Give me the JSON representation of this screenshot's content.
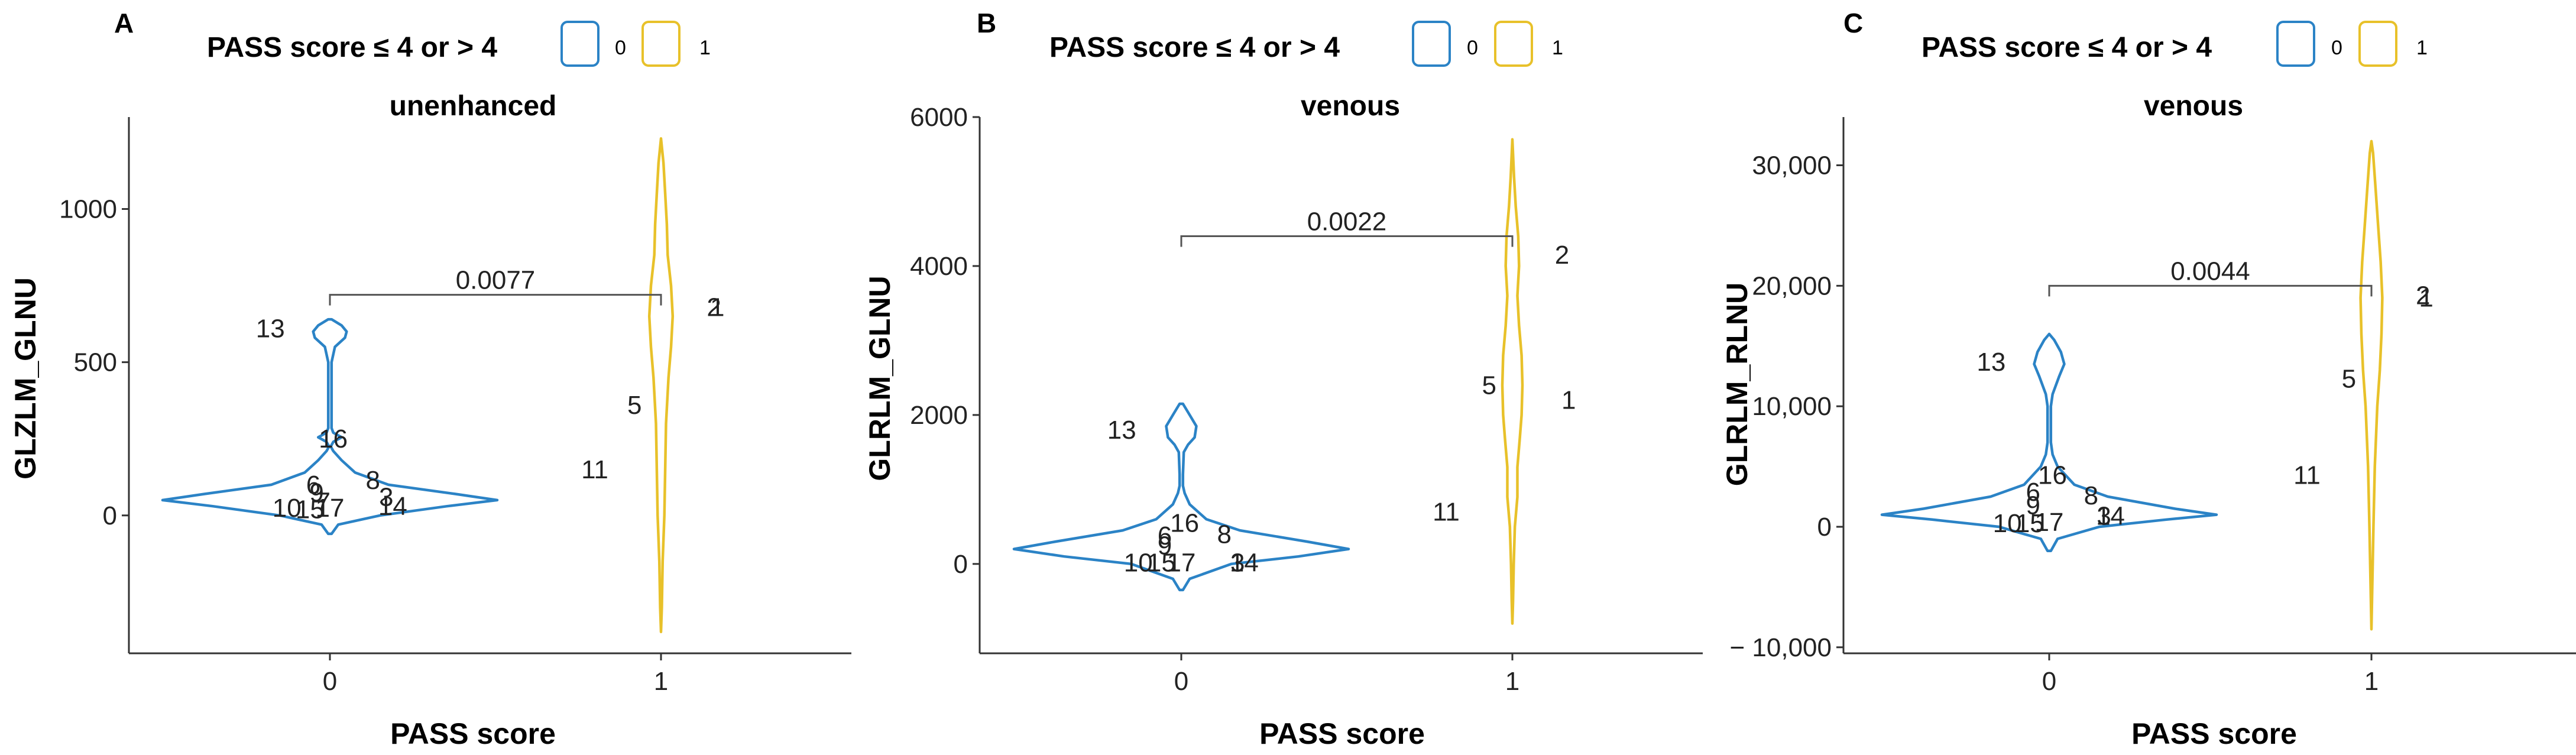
{
  "colors": {
    "group0": "#2b83c6",
    "group1": "#e8c12a",
    "axis": "#333333",
    "bracket": "#555555"
  },
  "legend": {
    "title": "PASS score ≤ 4 or > 4",
    "items": [
      "0",
      "1"
    ]
  },
  "chart_data": [
    {
      "type": "violin",
      "panel": "A",
      "title": "unenhanced",
      "xlabel": "PASS score",
      "ylabel": "GLZLM_GLNU",
      "categories": [
        "0",
        "1"
      ],
      "ylim": [
        -450,
        1300
      ],
      "yticks": [
        0,
        500,
        1000
      ],
      "ytick_labels": [
        "0",
        "500",
        "1000"
      ],
      "p_value": "0.0077",
      "bracket_y": 720,
      "series": [
        {
          "name": "0",
          "profile": [
            [
              -60,
              0.01
            ],
            [
              -30,
              0.05
            ],
            [
              0,
              0.3
            ],
            [
              30,
              0.7
            ],
            [
              50,
              1.0
            ],
            [
              70,
              0.75
            ],
            [
              100,
              0.35
            ],
            [
              140,
              0.15
            ],
            [
              180,
              0.07
            ],
            [
              210,
              0.02
            ],
            [
              225,
              0.005
            ],
            [
              240,
              0.02
            ],
            [
              255,
              0.07
            ],
            [
              270,
              0.02
            ],
            [
              285,
              0.01
            ],
            [
              320,
              0.01
            ],
            [
              400,
              0.01
            ],
            [
              500,
              0.01
            ],
            [
              550,
              0.03
            ],
            [
              580,
              0.09
            ],
            [
              600,
              0.1
            ],
            [
              620,
              0.07
            ],
            [
              640,
              0.01
            ]
          ],
          "points": [
            {
              "label": "13",
              "y": 610,
              "side": -0.18
            },
            {
              "label": "16",
              "y": 250,
              "side": 0.01
            },
            {
              "label": "8",
              "y": 115,
              "side": 0.13
            },
            {
              "label": "6",
              "y": 100,
              "side": -0.05
            },
            {
              "label": "9",
              "y": 75,
              "side": -0.04
            },
            {
              "label": "3",
              "y": 60,
              "side": 0.17
            },
            {
              "label": "7",
              "y": 45,
              "side": -0.02
            },
            {
              "label": "14",
              "y": 30,
              "side": 0.19
            },
            {
              "label": "10",
              "y": 25,
              "side": -0.13
            },
            {
              "label": "15",
              "y": 20,
              "side": -0.06
            },
            {
              "label": "17",
              "y": 25,
              "side": 0.0
            }
          ]
        },
        {
          "name": "1",
          "profile": [
            [
              -380,
              0.0
            ],
            [
              -300,
              0.005
            ],
            [
              -150,
              0.01
            ],
            [
              0,
              0.02
            ],
            [
              150,
              0.025
            ],
            [
              300,
              0.03
            ],
            [
              450,
              0.045
            ],
            [
              550,
              0.06
            ],
            [
              650,
              0.07
            ],
            [
              750,
              0.06
            ],
            [
              850,
              0.04
            ],
            [
              950,
              0.035
            ],
            [
              1050,
              0.025
            ],
            [
              1150,
              0.015
            ],
            [
              1230,
              0.0
            ]
          ],
          "points": [
            {
              "label": "2",
              "y": 680,
              "side": 0.16
            },
            {
              "label": "1",
              "y": 680,
              "side": 0.17
            },
            {
              "label": "5",
              "y": 360,
              "side": -0.08
            },
            {
              "label": "11",
              "y": 150,
              "side": -0.2
            }
          ]
        }
      ]
    },
    {
      "type": "violin",
      "panel": "B",
      "title": "venous",
      "xlabel": "PASS score",
      "ylabel": "GLRLM_GLNU",
      "categories": [
        "0",
        "1"
      ],
      "ylim": [
        -1200,
        6000
      ],
      "yticks": [
        0,
        2000,
        4000,
        6000
      ],
      "ytick_labels": [
        "0",
        "2000",
        "4000",
        "6000"
      ],
      "p_value": "0.0022",
      "bracket_y": 4400,
      "series": [
        {
          "name": "0",
          "profile": [
            [
              -350,
              0.01
            ],
            [
              -200,
              0.05
            ],
            [
              0,
              0.3
            ],
            [
              100,
              0.7
            ],
            [
              200,
              1.0
            ],
            [
              300,
              0.75
            ],
            [
              450,
              0.35
            ],
            [
              600,
              0.15
            ],
            [
              800,
              0.05
            ],
            [
              950,
              0.02
            ],
            [
              1050,
              0.01
            ],
            [
              1200,
              0.01
            ],
            [
              1500,
              0.015
            ],
            [
              1600,
              0.04
            ],
            [
              1700,
              0.08
            ],
            [
              1850,
              0.09
            ],
            [
              2000,
              0.05
            ],
            [
              2150,
              0.01
            ]
          ],
          "points": [
            {
              "label": "13",
              "y": 1800,
              "side": -0.18
            },
            {
              "label": "16",
              "y": 550,
              "side": 0.01
            },
            {
              "label": "8",
              "y": 400,
              "side": 0.13
            },
            {
              "label": "6",
              "y": 380,
              "side": -0.05
            },
            {
              "label": "9",
              "y": 250,
              "side": -0.05
            },
            {
              "label": "3",
              "y": 20,
              "side": 0.17
            },
            {
              "label": "14",
              "y": 20,
              "side": 0.19
            },
            {
              "label": "10",
              "y": 20,
              "side": -0.13
            },
            {
              "label": "15",
              "y": 20,
              "side": -0.06
            },
            {
              "label": "17",
              "y": 20,
              "side": 0.0
            }
          ]
        },
        {
          "name": "1",
          "profile": [
            [
              -800,
              0.0
            ],
            [
              -500,
              0.004
            ],
            [
              0,
              0.008
            ],
            [
              500,
              0.015
            ],
            [
              900,
              0.03
            ],
            [
              1300,
              0.03
            ],
            [
              1700,
              0.045
            ],
            [
              2000,
              0.055
            ],
            [
              2400,
              0.06
            ],
            [
              2800,
              0.055
            ],
            [
              3200,
              0.04
            ],
            [
              3600,
              0.03
            ],
            [
              4000,
              0.04
            ],
            [
              4400,
              0.035
            ],
            [
              4800,
              0.02
            ],
            [
              5200,
              0.01
            ],
            [
              5700,
              0.0
            ]
          ],
          "points": [
            {
              "label": "2",
              "y": 4150,
              "side": 0.15
            },
            {
              "label": "5",
              "y": 2400,
              "side": -0.07
            },
            {
              "label": "1",
              "y": 2200,
              "side": 0.17
            },
            {
              "label": "11",
              "y": 700,
              "side": -0.2
            }
          ]
        }
      ]
    },
    {
      "type": "violin",
      "panel": "C",
      "title": "venous",
      "xlabel": "PASS score",
      "ylabel": "GLRLM_RLNU",
      "categories": [
        "0",
        "1"
      ],
      "ylim": [
        -10500,
        34000
      ],
      "yticks": [
        -10000,
        0,
        10000,
        20000,
        30000
      ],
      "ytick_labels": [
        "− 10,000",
        "0",
        "10,000",
        "20,000",
        "30,000"
      ],
      "p_value": "0.0044",
      "bracket_y": 20000,
      "series": [
        {
          "name": "0",
          "profile": [
            [
              -2000,
              0.01
            ],
            [
              -1000,
              0.05
            ],
            [
              0,
              0.3
            ],
            [
              600,
              0.7
            ],
            [
              1000,
              1.0
            ],
            [
              1500,
              0.75
            ],
            [
              2500,
              0.35
            ],
            [
              3500,
              0.15
            ],
            [
              5000,
              0.05
            ],
            [
              6000,
              0.02
            ],
            [
              7000,
              0.01
            ],
            [
              8000,
              0.01
            ],
            [
              10000,
              0.01
            ],
            [
              11000,
              0.02
            ],
            [
              12500,
              0.06
            ],
            [
              13500,
              0.09
            ],
            [
              14500,
              0.07
            ],
            [
              15500,
              0.03
            ],
            [
              16000,
              0.0
            ]
          ],
          "points": [
            {
              "label": "13",
              "y": 13700,
              "side": -0.18
            },
            {
              "label": "16",
              "y": 4300,
              "side": 0.01
            },
            {
              "label": "8",
              "y": 2600,
              "side": 0.13
            },
            {
              "label": "6",
              "y": 2900,
              "side": -0.05
            },
            {
              "label": "9",
              "y": 1800,
              "side": -0.05
            },
            {
              "label": "3",
              "y": 900,
              "side": 0.17
            },
            {
              "label": "14",
              "y": 900,
              "side": 0.19
            },
            {
              "label": "10",
              "y": 300,
              "side": -0.13
            },
            {
              "label": "15",
              "y": 300,
              "side": -0.06
            },
            {
              "label": "17",
              "y": 400,
              "side": 0.0
            }
          ]
        },
        {
          "name": "1",
          "profile": [
            [
              -8500,
              0.0
            ],
            [
              -5000,
              0.005
            ],
            [
              0,
              0.012
            ],
            [
              5000,
              0.02
            ],
            [
              10000,
              0.035
            ],
            [
              13000,
              0.05
            ],
            [
              16000,
              0.06
            ],
            [
              19000,
              0.065
            ],
            [
              22000,
              0.055
            ],
            [
              25000,
              0.04
            ],
            [
              28000,
              0.025
            ],
            [
              31000,
              0.01
            ],
            [
              32000,
              0.0
            ]
          ],
          "points": [
            {
              "label": "2",
              "y": 19200,
              "side": 0.16
            },
            {
              "label": "1",
              "y": 19000,
              "side": 0.17
            },
            {
              "label": "5",
              "y": 12300,
              "side": -0.07
            },
            {
              "label": "11",
              "y": 4300,
              "side": -0.2
            }
          ]
        }
      ]
    }
  ]
}
